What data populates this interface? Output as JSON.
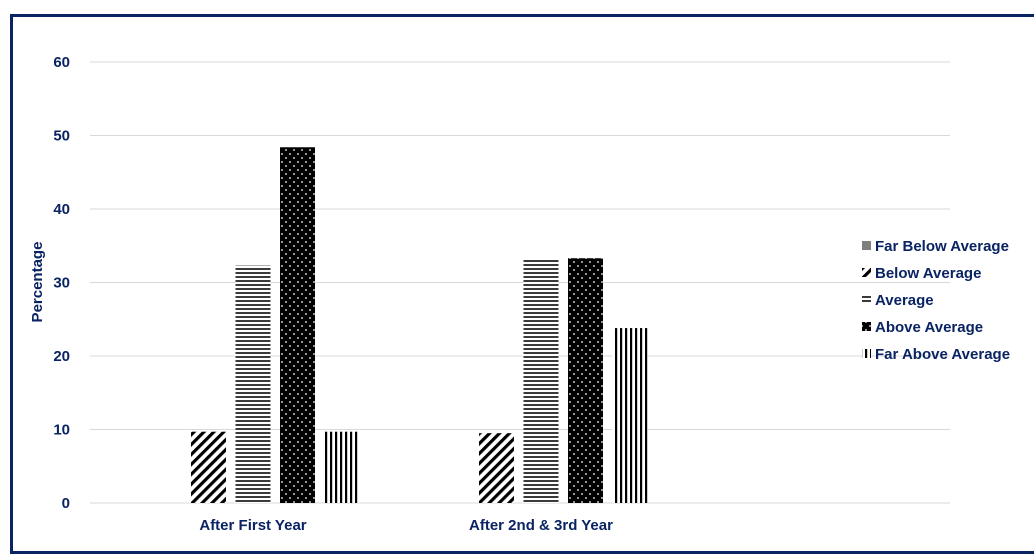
{
  "chart_data": {
    "type": "bar",
    "categories": [
      "After First Year",
      "After 2nd & 3rd Year"
    ],
    "ylabel": "Percentage",
    "ylim": [
      0,
      60
    ],
    "yticks": [
      0,
      10,
      20,
      30,
      40,
      50,
      60
    ],
    "grid": true,
    "legend_position": "right",
    "series": [
      {
        "name": "Far Below Average",
        "values": [
          0,
          0
        ],
        "pattern": "solid-gray"
      },
      {
        "name": "Below Average",
        "values": [
          9.7,
          9.5
        ],
        "pattern": "diagonal-stripes"
      },
      {
        "name": "Average",
        "values": [
          32.3,
          33.3
        ],
        "pattern": "horizontal-stripes"
      },
      {
        "name": "Above Average",
        "values": [
          48.4,
          33.3
        ],
        "pattern": "black-dots"
      },
      {
        "name": "Far Above Average",
        "values": [
          9.7,
          23.8
        ],
        "pattern": "vertical-stripes"
      }
    ],
    "colors": {
      "text": "#0a2362",
      "frame": "#0a2362",
      "grid": "#d9d9d9"
    }
  }
}
